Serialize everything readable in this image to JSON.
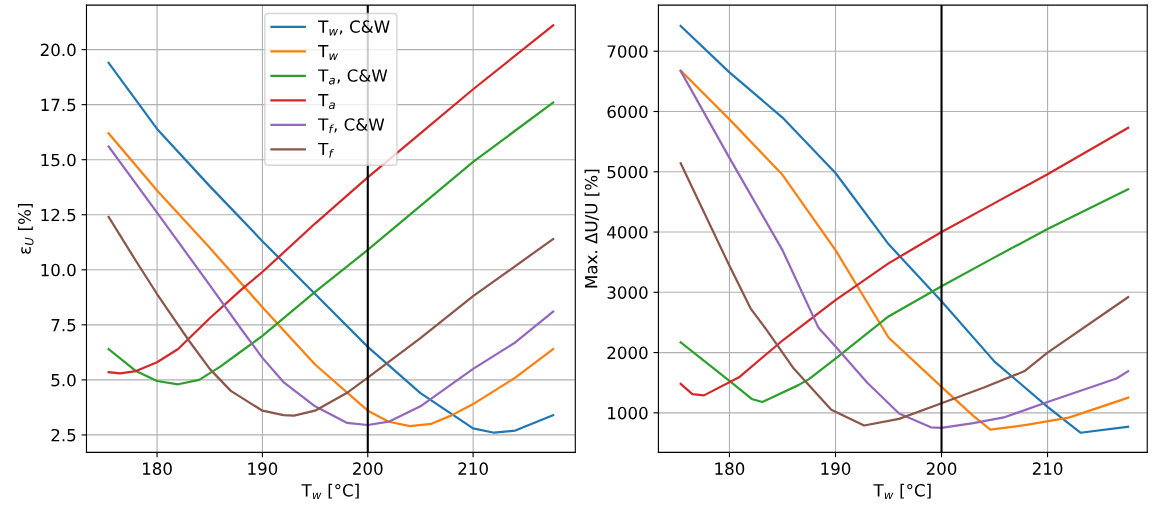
{
  "chart_data": [
    {
      "type": "line",
      "xlabel": "T$_{w}$ [°C]",
      "ylabel": "ε$_{U}$ [%]",
      "xlim": [
        173.3,
        219.7
      ],
      "ylim": [
        1.71,
        22.02
      ],
      "xticks": [
        180,
        190,
        200,
        210
      ],
      "yticks": [
        2.5,
        {
          "value": 5,
          "label": "5.0"
        },
        7.5,
        {
          "value": 10,
          "label": "10.0"
        },
        12.5,
        {
          "value": 15,
          "label": "15.0"
        },
        17.5,
        {
          "value": 20,
          "label": "20.0"
        }
      ],
      "grid": true,
      "legend": "top",
      "ref_lines": [
        {
          "axis": "x",
          "value": 200,
          "color": "#000000"
        }
      ],
      "series": [
        {
          "name": "T$_{w}$, C&W",
          "color": "#1f77b4",
          "x": [
            175.4,
            180,
            185,
            190,
            195,
            200,
            205,
            210,
            212,
            214,
            217.6
          ],
          "values": [
            19.4,
            16.4,
            13.8,
            11.3,
            8.9,
            6.5,
            4.4,
            2.8,
            2.6,
            2.7,
            3.4
          ]
        },
        {
          "name": "T$_{w}$",
          "color": "#ff7f0e",
          "x": [
            175.4,
            180,
            185,
            190,
            195,
            200,
            202,
            204,
            206,
            208,
            210,
            214,
            217.6
          ],
          "values": [
            16.2,
            13.6,
            11.0,
            8.3,
            5.7,
            3.6,
            3.1,
            2.9,
            3.0,
            3.4,
            3.9,
            5.1,
            6.4
          ]
        },
        {
          "name": "T$_{a}$, C&W",
          "color": "#2ca02c",
          "x": [
            175.4,
            178,
            180,
            182,
            184,
            186,
            188,
            190,
            195,
            200,
            205,
            210,
            217.6
          ],
          "values": [
            6.4,
            5.4,
            4.95,
            4.8,
            5.0,
            5.6,
            6.3,
            7.0,
            9.0,
            10.9,
            12.9,
            14.9,
            17.6
          ]
        },
        {
          "name": "T$_{a}$",
          "color": "#d62728",
          "x": [
            175.4,
            176.5,
            178,
            180,
            182,
            185,
            188,
            190,
            195,
            200,
            205,
            210,
            217.6
          ],
          "values": [
            5.35,
            5.3,
            5.4,
            5.8,
            6.4,
            7.8,
            9.1,
            9.9,
            12.1,
            14.2,
            16.2,
            18.2,
            21.1
          ]
        },
        {
          "name": "T$_{f}$, C&W",
          "color": "#9467bd",
          "x": [
            175.4,
            180,
            185,
            188,
            190,
            192,
            195,
            198,
            200,
            202,
            205,
            210,
            214,
            217.6
          ],
          "values": [
            15.6,
            12.6,
            9.3,
            7.3,
            6.0,
            4.9,
            3.8,
            3.05,
            2.95,
            3.1,
            3.8,
            5.5,
            6.7,
            8.1
          ]
        },
        {
          "name": "T$_{f}$",
          "color": "#8c564b",
          "x": [
            175.4,
            178,
            180,
            183,
            185,
            187,
            190,
            192,
            193,
            195,
            198,
            200,
            205,
            210,
            217.6
          ],
          "values": [
            12.4,
            10.4,
            8.9,
            6.8,
            5.5,
            4.5,
            3.6,
            3.4,
            3.38,
            3.6,
            4.4,
            5.1,
            6.9,
            8.8,
            11.4
          ]
        }
      ]
    },
    {
      "type": "line",
      "xlabel": "T$_{w}$ [°C]",
      "ylabel": "Max. ΔU/U [%]",
      "xlim": [
        173.3,
        219.4
      ],
      "ylim": [
        345,
        7765
      ],
      "xticks": [
        180,
        190,
        200,
        210
      ],
      "yticks": [
        1000,
        2000,
        3000,
        4000,
        5000,
        6000,
        7000
      ],
      "grid": true,
      "ref_lines": [
        {
          "axis": "x",
          "value": 200,
          "color": "#000000"
        }
      ],
      "series": [
        {
          "color": "#1f77b4",
          "x": [
            175.4,
            180,
            185,
            190,
            195,
            200,
            205,
            210,
            213.1,
            217.6
          ],
          "values": [
            7420,
            6650,
            5900,
            4980,
            3800,
            2850,
            1850,
            1100,
            670,
            770
          ]
        },
        {
          "color": "#ff7f0e",
          "x": [
            175.4,
            180,
            185,
            190,
            195,
            200,
            203,
            204.6,
            208,
            212,
            217.6
          ],
          "values": [
            6680,
            5870,
            4950,
            3700,
            2250,
            1430,
            950,
            720,
            800,
            920,
            1250
          ]
        },
        {
          "color": "#2ca02c",
          "x": [
            175.4,
            180,
            182.1,
            183.1,
            186.5,
            187.5,
            190,
            195,
            200,
            205,
            210,
            217.6
          ],
          "values": [
            2170,
            1530,
            1230,
            1180,
            1460,
            1560,
            1900,
            2600,
            3100,
            3580,
            4050,
            4710
          ]
        },
        {
          "color": "#d62728",
          "x": [
            175.4,
            176.5,
            177.6,
            180.9,
            185,
            190,
            195,
            200,
            205,
            210,
            217.6
          ],
          "values": [
            1480,
            1310,
            1290,
            1590,
            2200,
            2870,
            3480,
            4000,
            4480,
            4960,
            5730
          ]
        },
        {
          "color": "#9467bd",
          "x": [
            175.4,
            180,
            185,
            188.4,
            190,
            193,
            196,
            199,
            200,
            203,
            206,
            210,
            216.5,
            217.6
          ],
          "values": [
            6670,
            5230,
            3700,
            2410,
            2100,
            1500,
            990,
            760,
            750,
            830,
            930,
            1180,
            1570,
            1690
          ]
        },
        {
          "color": "#8c564b",
          "x": [
            175.4,
            180,
            182,
            183.4,
            186,
            189.6,
            192.7,
            196,
            200,
            204,
            207.8,
            210,
            217.6
          ],
          "values": [
            5140,
            3440,
            2730,
            2400,
            1750,
            1050,
            790,
            900,
            1160,
            1420,
            1690,
            2000,
            2920
          ]
        }
      ]
    }
  ]
}
